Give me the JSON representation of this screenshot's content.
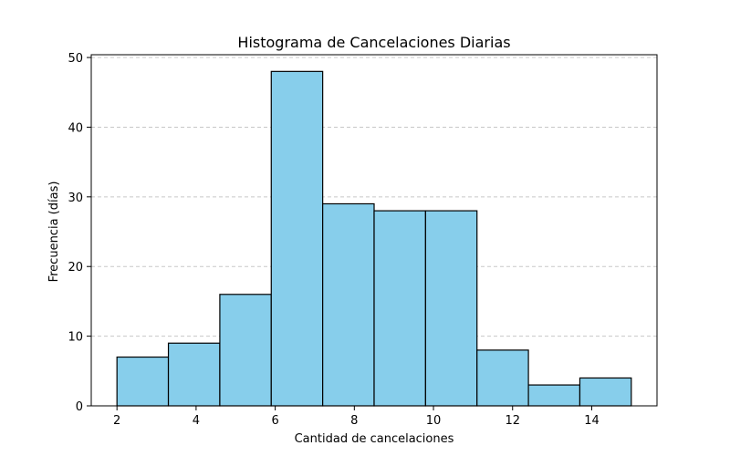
{
  "chart_data": {
    "type": "bar",
    "title": "Histograma de Cancelaciones Diarias",
    "xlabel": "Cantidad de cancelaciones",
    "ylabel": "Frecuencia (días)",
    "bin_edges": [
      2,
      3.3,
      4.6,
      5.9,
      7.2,
      8.5,
      9.8,
      11.1,
      12.4,
      13.7,
      15
    ],
    "values": [
      7,
      9,
      16,
      48,
      29,
      28,
      28,
      8,
      3,
      4
    ],
    "xlim": [
      1.35,
      15.65
    ],
    "ylim": [
      0,
      50.4
    ],
    "xticks": [
      2,
      4,
      6,
      8,
      10,
      12,
      14
    ],
    "yticks": [
      0,
      10,
      20,
      30,
      40,
      50
    ],
    "grid": "y dashed",
    "bar_color": "#87ceeb",
    "edge_color": "#000000",
    "grid_color": "#c8c8c8"
  }
}
